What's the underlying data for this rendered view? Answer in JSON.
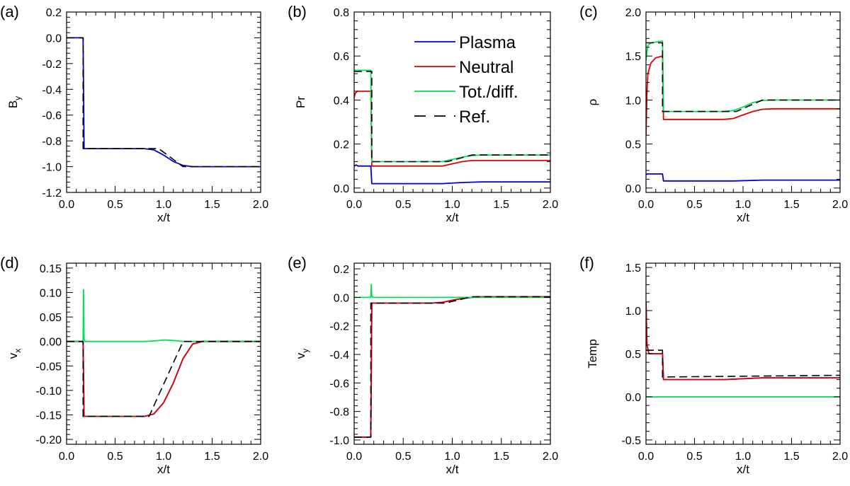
{
  "figure": {
    "colors": {
      "plasma": "#0000d8",
      "neutral": "#e00000",
      "total": "#00e050",
      "reference": "#000000"
    },
    "legend": {
      "entries": [
        {
          "key": "plasma",
          "label": "Plasma",
          "dashed": false
        },
        {
          "key": "neutral",
          "label": "Neutral",
          "dashed": false
        },
        {
          "key": "total",
          "label": "Tot./diff.",
          "dashed": false
        },
        {
          "key": "reference",
          "label": "Ref.",
          "dashed": true
        }
      ]
    }
  },
  "chart_data": [
    {
      "id": "a",
      "panel_label": "(a)",
      "type": "line",
      "xlabel": "x/t",
      "ylabel": "B",
      "ylabel_sub": "y",
      "xlim": [
        0,
        2
      ],
      "ylim": [
        -1.2,
        0.2
      ],
      "xticks": [
        {
          "v": 0,
          "label": "0.0"
        },
        {
          "v": 0.5,
          "label": "0.5"
        },
        {
          "v": 1,
          "label": "1.0"
        },
        {
          "v": 1.5,
          "label": "1.5"
        },
        {
          "v": 2,
          "label": "2.0"
        }
      ],
      "yticks": [
        {
          "v": 0.2,
          "label": "0.2"
        },
        {
          "v": 0,
          "label": "0.0"
        },
        {
          "v": -0.2,
          "label": "-0.2"
        },
        {
          "v": -0.4,
          "label": "-0.4"
        },
        {
          "v": -0.6,
          "label": "-0.6"
        },
        {
          "v": -0.8,
          "label": "-0.8"
        },
        {
          "v": -1,
          "label": "-1.0"
        },
        {
          "v": -1.2,
          "label": "-1.2"
        }
      ],
      "series": [
        {
          "name": "Plasma",
          "key": "plasma",
          "x": [
            0,
            0.17,
            0.18,
            0.8,
            0.9,
            1.0,
            1.1,
            1.2,
            1.3,
            1.4,
            2.0
          ],
          "y": [
            0,
            0,
            -0.86,
            -0.86,
            -0.87,
            -0.91,
            -0.96,
            -0.99,
            -1.0,
            -1.0,
            -1.0
          ]
        },
        {
          "name": "Ref.",
          "key": "reference",
          "dashed": true,
          "x": [
            0,
            0.17,
            0.17,
            0.9,
            0.95,
            1.2,
            2.0
          ],
          "y": [
            0,
            0,
            -0.86,
            -0.86,
            -0.86,
            -1.0,
            -1.0
          ]
        }
      ]
    },
    {
      "id": "b",
      "panel_label": "(b)",
      "type": "line",
      "xlabel": "x/t",
      "ylabel": "Pr",
      "ylabel_sub": "",
      "xlim": [
        0,
        2
      ],
      "ylim": [
        -0.02,
        0.8
      ],
      "xticks": [
        {
          "v": 0,
          "label": "0.0"
        },
        {
          "v": 0.5,
          "label": "0.5"
        },
        {
          "v": 1,
          "label": "1.0"
        },
        {
          "v": 1.5,
          "label": "1.5"
        },
        {
          "v": 2,
          "label": "2.0"
        }
      ],
      "yticks": [
        {
          "v": 0,
          "label": "0.0"
        },
        {
          "v": 0.2,
          "label": "0.2"
        },
        {
          "v": 0.4,
          "label": "0.4"
        },
        {
          "v": 0.6,
          "label": "0.6"
        },
        {
          "v": 0.8,
          "label": "0.8"
        }
      ],
      "show_legend": true,
      "series": [
        {
          "name": "Plasma",
          "key": "plasma",
          "x": [
            0,
            0.02,
            0.04,
            0.17,
            0.18,
            0.9,
            1.1,
            1.3,
            2.0
          ],
          "y": [
            0.1,
            0.105,
            0.1,
            0.1,
            0.02,
            0.02,
            0.025,
            0.028,
            0.028
          ]
        },
        {
          "name": "Neutral",
          "key": "neutral",
          "x": [
            0,
            0.01,
            0.03,
            0.17,
            0.18,
            0.9,
            1.0,
            1.1,
            1.2,
            1.3,
            2.0
          ],
          "y": [
            0.41,
            0.43,
            0.44,
            0.44,
            0.1,
            0.1,
            0.11,
            0.12,
            0.125,
            0.125,
            0.125
          ]
        },
        {
          "name": "Tot./diff.",
          "key": "total",
          "x": [
            0,
            0.17,
            0.18,
            0.9,
            1.0,
            1.1,
            1.2,
            1.3,
            2.0
          ],
          "y": [
            0.535,
            0.535,
            0.12,
            0.12,
            0.13,
            0.14,
            0.148,
            0.15,
            0.15
          ]
        },
        {
          "name": "Ref.",
          "key": "reference",
          "dashed": true,
          "x": [
            0,
            0.18,
            0.18,
            0.95,
            1.2,
            2.0
          ],
          "y": [
            0.53,
            0.53,
            0.12,
            0.12,
            0.15,
            0.15
          ]
        }
      ]
    },
    {
      "id": "c",
      "panel_label": "(c)",
      "type": "line",
      "xlabel": "x/t",
      "ylabel": "ρ",
      "ylabel_sub": "",
      "xlim": [
        0,
        2
      ],
      "ylim": [
        -0.05,
        2.0
      ],
      "xticks": [
        {
          "v": 0,
          "label": "0.0"
        },
        {
          "v": 0.5,
          "label": "0.5"
        },
        {
          "v": 1,
          "label": "1.0"
        },
        {
          "v": 1.5,
          "label": "1.5"
        },
        {
          "v": 2,
          "label": "2.0"
        }
      ],
      "yticks": [
        {
          "v": 0,
          "label": "0.0"
        },
        {
          "v": 0.5,
          "label": "0.5"
        },
        {
          "v": 1,
          "label": "1.0"
        },
        {
          "v": 1.5,
          "label": "1.5"
        },
        {
          "v": 2,
          "label": "2.0"
        }
      ],
      "series": [
        {
          "name": "Plasma",
          "key": "plasma",
          "x": [
            0,
            0.01,
            0.17,
            0.18,
            0.9,
            1.2,
            2.0
          ],
          "y": [
            0.15,
            0.16,
            0.16,
            0.08,
            0.08,
            0.09,
            0.09
          ]
        },
        {
          "name": "Neutral",
          "key": "neutral",
          "x": [
            0,
            0.01,
            0.02,
            0.05,
            0.1,
            0.17,
            0.18,
            0.8,
            0.9,
            1.0,
            1.1,
            1.2,
            1.3,
            2.0
          ],
          "y": [
            0.6,
            1.1,
            1.3,
            1.42,
            1.48,
            1.5,
            0.78,
            0.78,
            0.79,
            0.83,
            0.87,
            0.895,
            0.9,
            0.9
          ]
        },
        {
          "name": "Tot./diff.",
          "key": "total",
          "x": [
            0,
            0.01,
            0.02,
            0.05,
            0.17,
            0.18,
            0.8,
            0.9,
            1.0,
            1.1,
            1.2,
            1.3,
            2.0
          ],
          "y": [
            1.45,
            1.55,
            1.62,
            1.65,
            1.67,
            0.87,
            0.87,
            0.88,
            0.92,
            0.97,
            0.995,
            1.0,
            1.0
          ]
        },
        {
          "name": "Ref.",
          "key": "reference",
          "dashed": true,
          "x": [
            0,
            0.17,
            0.17,
            0.93,
            1.2,
            2.0
          ],
          "y": [
            1.65,
            1.65,
            0.87,
            0.87,
            1.0,
            1.0
          ]
        }
      ]
    },
    {
      "id": "d",
      "panel_label": "(d)",
      "type": "line",
      "xlabel": "x/t",
      "ylabel": "v",
      "ylabel_sub": "x",
      "xlim": [
        0,
        2
      ],
      "ylim": [
        -0.21,
        0.16
      ],
      "xticks": [
        {
          "v": 0,
          "label": "0.0"
        },
        {
          "v": 0.5,
          "label": "0.5"
        },
        {
          "v": 1,
          "label": "1.0"
        },
        {
          "v": 1.5,
          "label": "1.5"
        },
        {
          "v": 2,
          "label": "2.0"
        }
      ],
      "yticks": [
        {
          "v": 0.15,
          "label": "0.15"
        },
        {
          "v": 0.1,
          "label": "0.10"
        },
        {
          "v": 0.05,
          "label": "0.05"
        },
        {
          "v": 0,
          "label": "0.00"
        },
        {
          "v": -0.05,
          "label": "-0.05"
        },
        {
          "v": -0.1,
          "label": "-0.10"
        },
        {
          "v": -0.15,
          "label": "-0.15"
        },
        {
          "v": -0.2,
          "label": "-0.20"
        }
      ],
      "series": [
        {
          "name": "Plasma",
          "key": "plasma",
          "x": [
            0,
            0.17,
            0.18,
            0.8,
            0.9,
            1.0,
            1.1,
            1.2,
            1.3,
            1.4,
            2.0
          ],
          "y": [
            0,
            0,
            -0.153,
            -0.153,
            -0.148,
            -0.125,
            -0.085,
            -0.035,
            -0.005,
            0,
            0
          ]
        },
        {
          "name": "Neutral",
          "key": "neutral",
          "x": [
            0,
            0.17,
            0.18,
            0.8,
            0.9,
            1.0,
            1.1,
            1.2,
            1.3,
            1.4,
            2.0
          ],
          "y": [
            0,
            0,
            -0.153,
            -0.153,
            -0.148,
            -0.125,
            -0.085,
            -0.035,
            -0.005,
            0,
            0
          ]
        },
        {
          "name": "Tot./diff.",
          "key": "total",
          "x": [
            0,
            0.17,
            0.175,
            0.18,
            0.19,
            0.8,
            0.9,
            1.0,
            1.1,
            1.2,
            2.0
          ],
          "y": [
            0,
            0,
            0.106,
            0.005,
            0,
            0,
            0.001,
            0.003,
            0.002,
            0,
            0
          ]
        },
        {
          "name": "Ref.",
          "key": "reference",
          "dashed": true,
          "x": [
            0,
            0.17,
            0.17,
            0.85,
            1.2,
            1.27,
            2.0
          ],
          "y": [
            0,
            0,
            -0.153,
            -0.153,
            0,
            0,
            0
          ]
        }
      ]
    },
    {
      "id": "e",
      "panel_label": "(e)",
      "type": "line",
      "xlabel": "x/t",
      "ylabel": "v",
      "ylabel_sub": "y",
      "xlim": [
        0,
        2
      ],
      "ylim": [
        -1.03,
        0.24
      ],
      "xticks": [
        {
          "v": 0,
          "label": "0.0"
        },
        {
          "v": 0.5,
          "label": "0.5"
        },
        {
          "v": 1,
          "label": "1.0"
        },
        {
          "v": 1.5,
          "label": "1.5"
        },
        {
          "v": 2,
          "label": "2.0"
        }
      ],
      "yticks": [
        {
          "v": 0.2,
          "label": "0.2"
        },
        {
          "v": 0,
          "label": "0.0"
        },
        {
          "v": -0.2,
          "label": "-0.2"
        },
        {
          "v": -0.4,
          "label": "-0.4"
        },
        {
          "v": -0.6,
          "label": "-0.6"
        },
        {
          "v": -0.8,
          "label": "-0.8"
        },
        {
          "v": -1,
          "label": "-1.0"
        }
      ],
      "series": [
        {
          "name": "Plasma",
          "key": "plasma",
          "x": [
            0,
            0.17,
            0.18,
            0.8,
            0.9,
            1.0,
            1.1,
            1.2,
            1.3,
            2.0
          ],
          "y": [
            -0.98,
            -0.98,
            -0.04,
            -0.04,
            -0.035,
            -0.02,
            -0.008,
            0,
            0.005,
            0.005
          ]
        },
        {
          "name": "Neutral",
          "key": "neutral",
          "x": [
            0,
            0.17,
            0.18,
            0.8,
            0.9,
            1.0,
            1.1,
            1.2,
            1.3,
            2.0
          ],
          "y": [
            -0.98,
            -0.98,
            -0.04,
            -0.04,
            -0.035,
            -0.02,
            -0.008,
            0,
            0.005,
            0.005
          ]
        },
        {
          "name": "Tot./diff.",
          "key": "total",
          "x": [
            0,
            0.17,
            0.175,
            0.18,
            0.19,
            2.0
          ],
          "y": [
            0,
            0,
            0.09,
            0.01,
            0,
            0
          ]
        },
        {
          "name": "Ref.",
          "key": "reference",
          "dashed": true,
          "x": [
            0,
            0.17,
            0.17,
            0.93,
            1.2,
            2.0
          ],
          "y": [
            -0.98,
            -0.98,
            -0.04,
            -0.04,
            0.005,
            0.005
          ]
        }
      ]
    },
    {
      "id": "f",
      "panel_label": "(f)",
      "type": "line",
      "xlabel": "x/t",
      "ylabel": "Temp",
      "ylabel_sub": "",
      "xlim": [
        0,
        2
      ],
      "ylim": [
        -0.55,
        1.55
      ],
      "xticks": [
        {
          "v": 0,
          "label": "0.0"
        },
        {
          "v": 0.5,
          "label": "0.5"
        },
        {
          "v": 1,
          "label": "1.0"
        },
        {
          "v": 1.5,
          "label": "1.5"
        },
        {
          "v": 2,
          "label": "2.0"
        }
      ],
      "yticks": [
        {
          "v": 1.5,
          "label": "1.5"
        },
        {
          "v": 1,
          "label": "1.0"
        },
        {
          "v": 0.5,
          "label": "0.5"
        },
        {
          "v": 0,
          "label": "0.0"
        },
        {
          "v": -0.5,
          "label": "-0.5"
        }
      ],
      "series": [
        {
          "name": "Plasma",
          "key": "plasma",
          "x": [
            0,
            0.01,
            0.03,
            0.17,
            0.18,
            0.8,
            1.0,
            1.2,
            2.0
          ],
          "y": [
            1.1,
            0.6,
            0.5,
            0.5,
            0.2,
            0.2,
            0.21,
            0.22,
            0.22
          ]
        },
        {
          "name": "Neutral",
          "key": "neutral",
          "x": [
            0,
            0.01,
            0.03,
            0.17,
            0.18,
            0.8,
            1.0,
            1.2,
            2.0
          ],
          "y": [
            1.1,
            0.6,
            0.5,
            0.5,
            0.2,
            0.2,
            0.21,
            0.22,
            0.22
          ]
        },
        {
          "name": "Tot./diff.",
          "key": "total",
          "x": [
            0,
            2.0
          ],
          "y": [
            0,
            0
          ]
        },
        {
          "name": "Ref.",
          "key": "reference",
          "dashed": true,
          "x": [
            0,
            0.17,
            0.17,
            2.0
          ],
          "y": [
            0.54,
            0.54,
            0.23,
            0.25
          ]
        }
      ]
    }
  ]
}
